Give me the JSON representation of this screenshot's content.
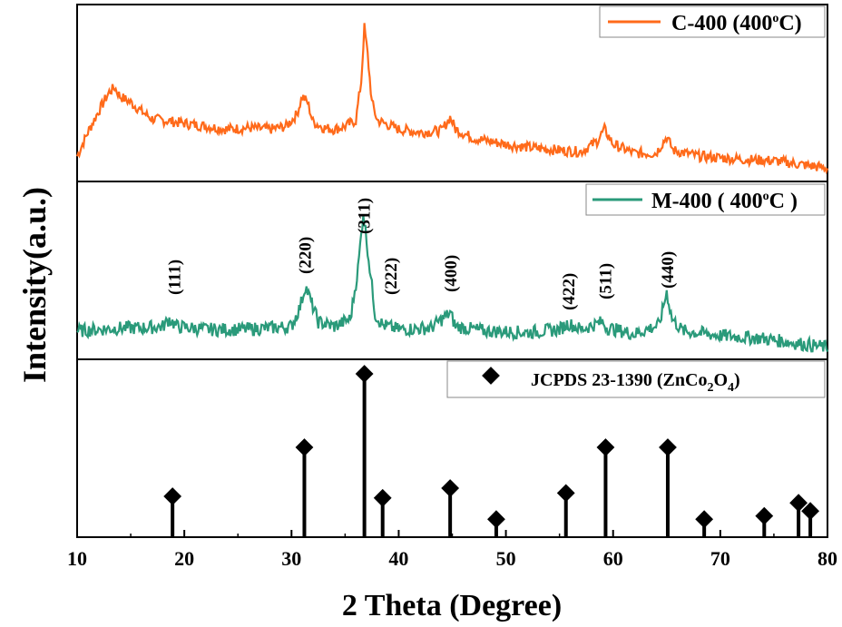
{
  "colors": {
    "c400": "#ff6a1a",
    "m400": "#2a9a7a",
    "ref": "#000000",
    "axis": "#000000"
  },
  "chart_data": {
    "type": "line",
    "xlabel": "2 Theta (Degree)",
    "ylabel": "Intensity(a.u.)",
    "xlim": [
      10,
      80
    ],
    "xticks": [
      "10",
      "20",
      "30",
      "40",
      "50",
      "60",
      "70",
      "80"
    ],
    "series": [
      {
        "name": "C-400 (400",
        "name_sup": "o",
        "name_tail": "C)",
        "points": [
          [
            10,
            0.12
          ],
          [
            11,
            0.28
          ],
          [
            12,
            0.42
          ],
          [
            13,
            0.55
          ],
          [
            13.5,
            0.58
          ],
          [
            14,
            0.52
          ],
          [
            15,
            0.48
          ],
          [
            16,
            0.42
          ],
          [
            17,
            0.37
          ],
          [
            18,
            0.36
          ],
          [
            20,
            0.34
          ],
          [
            22,
            0.32
          ],
          [
            24,
            0.3
          ],
          [
            26,
            0.31
          ],
          [
            28,
            0.3
          ],
          [
            29.5,
            0.32
          ],
          [
            30.5,
            0.4
          ],
          [
            31,
            0.52
          ],
          [
            31.5,
            0.48
          ],
          [
            32,
            0.35
          ],
          [
            33,
            0.31
          ],
          [
            34,
            0.3
          ],
          [
            35,
            0.32
          ],
          [
            36,
            0.36
          ],
          [
            36.5,
            0.62
          ],
          [
            36.8,
            0.98
          ],
          [
            37.1,
            0.8
          ],
          [
            37.5,
            0.48
          ],
          [
            38,
            0.36
          ],
          [
            40,
            0.3
          ],
          [
            42,
            0.28
          ],
          [
            44,
            0.29
          ],
          [
            44.8,
            0.38
          ],
          [
            45.3,
            0.3
          ],
          [
            47,
            0.24
          ],
          [
            50,
            0.2
          ],
          [
            52,
            0.18
          ],
          [
            55,
            0.16
          ],
          [
            57,
            0.15
          ],
          [
            58.5,
            0.22
          ],
          [
            59.2,
            0.3
          ],
          [
            60,
            0.2
          ],
          [
            62,
            0.14
          ],
          [
            64,
            0.14
          ],
          [
            65,
            0.25
          ],
          [
            65.6,
            0.16
          ],
          [
            68,
            0.12
          ],
          [
            72,
            0.1
          ],
          [
            75,
            0.09
          ],
          [
            78,
            0.06
          ],
          [
            80,
            0.04
          ]
        ]
      },
      {
        "name": "M-400 ( 400",
        "name_sup": "o",
        "name_tail": "C )",
        "points": [
          [
            10,
            0.14
          ],
          [
            12,
            0.15
          ],
          [
            14,
            0.16
          ],
          [
            16,
            0.16
          ],
          [
            18,
            0.17
          ],
          [
            18.6,
            0.22
          ],
          [
            19.3,
            0.17
          ],
          [
            22,
            0.15
          ],
          [
            25,
            0.15
          ],
          [
            28,
            0.16
          ],
          [
            30,
            0.17
          ],
          [
            30.8,
            0.3
          ],
          [
            31.3,
            0.44
          ],
          [
            31.9,
            0.32
          ],
          [
            32.5,
            0.2
          ],
          [
            34,
            0.17
          ],
          [
            35.5,
            0.22
          ],
          [
            36.2,
            0.55
          ],
          [
            36.7,
            0.93
          ],
          [
            37.2,
            0.62
          ],
          [
            37.8,
            0.25
          ],
          [
            38.5,
            0.18
          ],
          [
            40,
            0.15
          ],
          [
            43,
            0.16
          ],
          [
            44.8,
            0.26
          ],
          [
            45.3,
            0.17
          ],
          [
            48,
            0.14
          ],
          [
            52,
            0.13
          ],
          [
            55,
            0.15
          ],
          [
            55.8,
            0.19
          ],
          [
            57,
            0.15
          ],
          [
            59,
            0.2
          ],
          [
            59.5,
            0.16
          ],
          [
            62,
            0.12
          ],
          [
            64.3,
            0.18
          ],
          [
            65,
            0.4
          ],
          [
            65.5,
            0.22
          ],
          [
            66.5,
            0.14
          ],
          [
            70,
            0.11
          ],
          [
            74,
            0.09
          ],
          [
            77,
            0.06
          ],
          [
            80,
            0.03
          ]
        ]
      }
    ],
    "reflections": {
      "name": "JCPDS 23-1390 (ZnCo",
      "name_sub1": "2",
      "name_mid": "O",
      "name_sub2": "4",
      "name_tail": ")",
      "peaks": [
        [
          18.9,
          0.25
        ],
        [
          31.2,
          0.55
        ],
        [
          36.8,
          1.0
        ],
        [
          38.5,
          0.24
        ],
        [
          44.8,
          0.3
        ],
        [
          49.1,
          0.11
        ],
        [
          55.6,
          0.27
        ],
        [
          59.3,
          0.55
        ],
        [
          65.1,
          0.55
        ],
        [
          68.5,
          0.11
        ],
        [
          74.1,
          0.13
        ],
        [
          77.3,
          0.21
        ],
        [
          78.4,
          0.16
        ]
      ]
    },
    "annotations": [
      {
        "label": "(111)",
        "x": 19.0
      },
      {
        "label": "(220)",
        "x": 31.2
      },
      {
        "label": "(311)",
        "x": 36.7
      },
      {
        "label": "(222)",
        "x": 39.2
      },
      {
        "label": "(400)",
        "x": 44.8
      },
      {
        "label": "(422)",
        "x": 55.8
      },
      {
        "label": "(511)",
        "x": 59.2
      },
      {
        "label": "(440)",
        "x": 65.0
      }
    ],
    "grid": false,
    "legend_position": "top-right"
  }
}
